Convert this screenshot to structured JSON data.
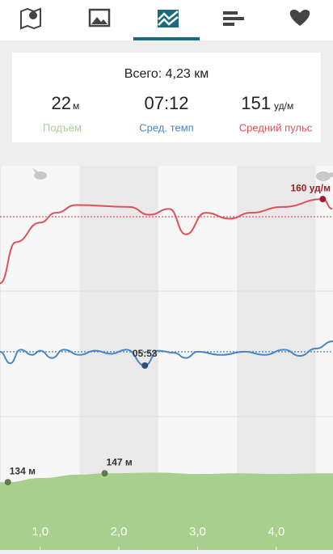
{
  "summary": {
    "total": "Всего: 4,23 км",
    "stats": [
      {
        "value": "22",
        "unit": "м",
        "label": "Подъём"
      },
      {
        "value": "07:12",
        "label": "Сред. темп"
      },
      {
        "value": "151",
        "unit": "уд/м",
        "label": "Средний пульс"
      }
    ]
  },
  "chart_data": [
    {
      "type": "line",
      "color": "#e0505a",
      "x": [
        0.49,
        0.69,
        1.0,
        1.2,
        1.46,
        2.13,
        2.39,
        2.64,
        2.85,
        3.1,
        3.41,
        3.67,
        4.08,
        4.59,
        4.71
      ],
      "values": [
        117,
        138,
        148,
        153,
        157,
        156,
        152,
        155,
        142,
        153,
        150,
        153,
        156,
        160,
        155
      ],
      "xlim": [
        0.49,
        4.72
      ],
      "ylim": [
        113,
        177
      ],
      "average": 151,
      "annotations": [
        {
          "x": 4.59,
          "value": 160,
          "label": "160 уд/м"
        }
      ]
    },
    {
      "type": "line",
      "color": "#4a86c5",
      "x": [
        0.49,
        0.62,
        0.75,
        0.9,
        1.0,
        1.15,
        1.3,
        1.5,
        1.7,
        1.9,
        2.1,
        2.33,
        2.5,
        2.7,
        2.85,
        3.0,
        3.3,
        3.6,
        3.85,
        4.1,
        4.3,
        4.5,
        4.72
      ],
      "values": [
        7.2,
        6.1,
        7.4,
        6.9,
        7.3,
        6.6,
        7.4,
        6.9,
        7.3,
        7.0,
        7.4,
        5.88,
        7.3,
        7.1,
        6.6,
        7.2,
        6.9,
        7.2,
        6.9,
        7.4,
        6.8,
        7.5,
        8.2
      ],
      "xlim": [
        0.49,
        4.72
      ],
      "ylim": [
        1,
        13
      ],
      "average": 7.2,
      "annotations": [
        {
          "x": 2.33,
          "value": 5.88,
          "label": "05:53"
        }
      ]
    },
    {
      "type": "area",
      "color": "#a9cf8e",
      "x": [
        0.49,
        0.59,
        1.0,
        1.5,
        1.82,
        2.5,
        3.0,
        3.5,
        4.0,
        4.72
      ],
      "values": [
        134,
        134,
        140,
        145,
        147,
        148,
        146,
        147,
        146,
        147
      ],
      "xlim": [
        0.49,
        4.72
      ],
      "ylim": [
        35,
        230
      ],
      "xticks": [
        {
          "value": 1,
          "label": "1,0"
        },
        {
          "value": 2,
          "label": "2,0"
        },
        {
          "value": 3,
          "label": "3,0"
        },
        {
          "value": 4,
          "label": "4,0"
        }
      ],
      "annotations": [
        {
          "x": 0.59,
          "value": 134,
          "label": "134 м"
        },
        {
          "x": 1.82,
          "value": 147,
          "label": "147 м"
        }
      ]
    }
  ]
}
